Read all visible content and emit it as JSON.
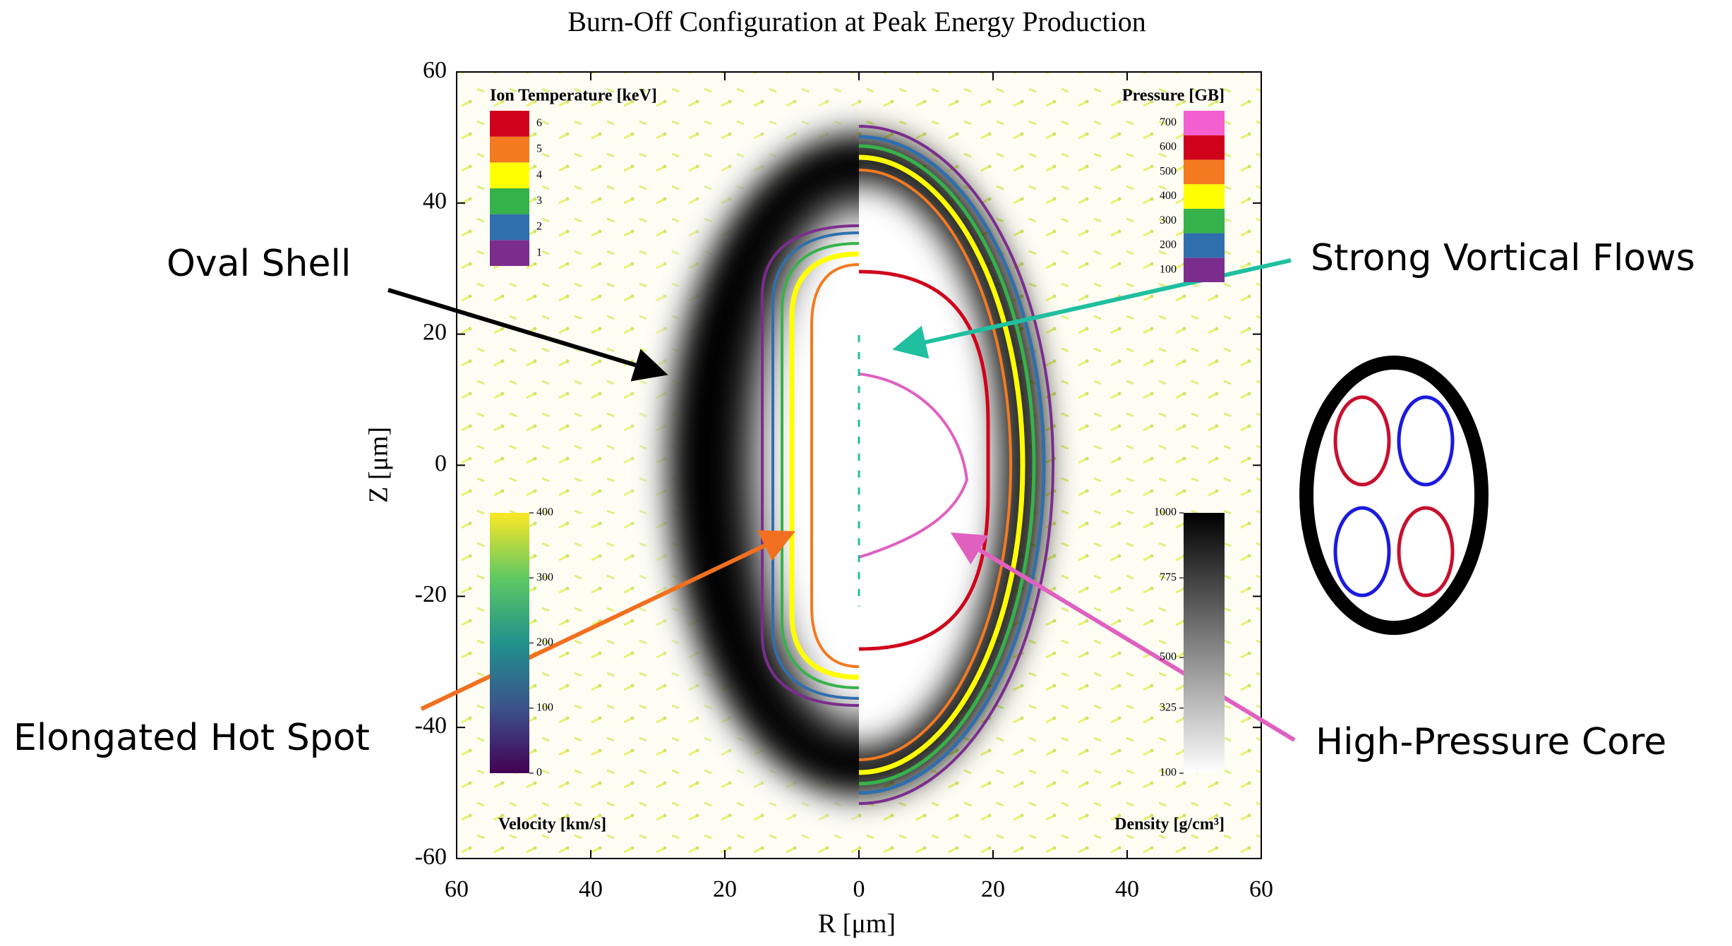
{
  "chart_data": {
    "type": "contour",
    "title": "Burn-Off Configuration at Peak Energy Production",
    "x_label": "R [μm]",
    "y_label": "Z [μm]",
    "xlim": [
      -60,
      60
    ],
    "xticks": [
      {
        "value": -60,
        "label": "60"
      },
      {
        "value": -40,
        "label": "40"
      },
      {
        "value": -20,
        "label": "20"
      },
      0,
      20,
      40,
      60
    ],
    "ylim": [
      -60,
      60
    ],
    "yticks": [
      -60,
      -40,
      -20,
      0,
      20,
      40,
      60
    ],
    "colorbars": [
      {
        "name": "Ion Temperature [keV]",
        "ticks": [
          1,
          2,
          3,
          4,
          5,
          6
        ],
        "colors": [
          "#7b2d8e",
          "#2f6fae",
          "#36b24a",
          "#ffff00",
          "#f47a20",
          "#d0021b"
        ]
      },
      {
        "name": "Pressure [GB]",
        "ticks": [
          100,
          200,
          300,
          400,
          500,
          600,
          700
        ],
        "colors": [
          "#7b2d8e",
          "#2f6fae",
          "#36b24a",
          "#ffff00",
          "#f47a20",
          "#d0021b",
          "#f45fd0"
        ]
      },
      {
        "name": "Velocity [km/s]",
        "lim": [
          0,
          400
        ],
        "ticks": [
          0,
          100,
          200,
          300,
          400
        ],
        "colors": [
          "#440154",
          "#3b528b",
          "#21918c",
          "#5ec962",
          "#fde725"
        ]
      },
      {
        "name": "Density [g/cm³]",
        "lim": [
          100,
          1000
        ],
        "ticks": [
          100,
          325,
          500,
          775,
          1000
        ],
        "colors": [
          "#ffffff",
          "#000000"
        ]
      }
    ],
    "annotations": [
      "Oval Shell",
      "Strong Vortical Flows",
      "Elongated Hot Spot",
      "High-Pressure Core"
    ]
  }
}
